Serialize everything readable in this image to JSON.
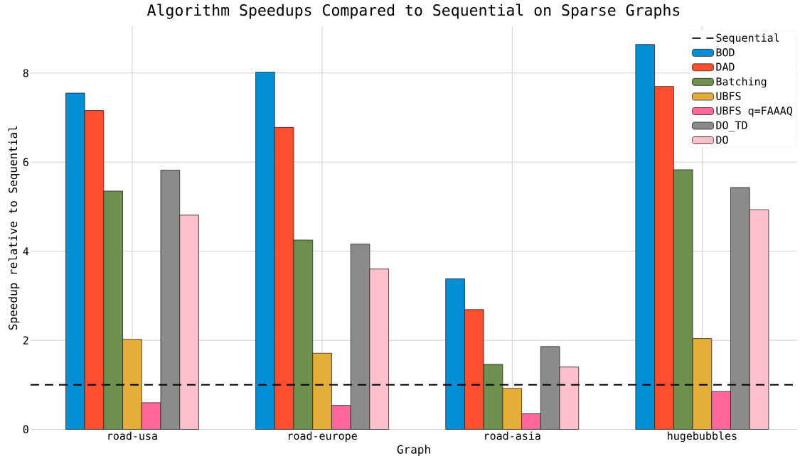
{
  "chart_data": {
    "type": "bar",
    "title": "Algorithm Speedups Compared to Sequential on Sparse Graphs",
    "xlabel": "Graph",
    "ylabel": "Speedup relative to Sequential",
    "categories": [
      "road-usa",
      "road-europe",
      "road-asia",
      "hugebubbles"
    ],
    "series": [
      {
        "name": "BOD",
        "color": "#008fd5",
        "values": [
          7.55,
          8.02,
          3.38,
          8.64
        ]
      },
      {
        "name": "DAD",
        "color": "#fc4f30",
        "values": [
          7.16,
          6.78,
          2.69,
          7.7
        ]
      },
      {
        "name": "Batching",
        "color": "#6d904f",
        "values": [
          5.35,
          4.25,
          1.46,
          5.83
        ]
      },
      {
        "name": "UBFS",
        "color": "#e5ae38",
        "values": [
          2.02,
          1.71,
          0.92,
          2.04
        ]
      },
      {
        "name": "UBFS q=FAAAQ",
        "color": "#ff6699",
        "values": [
          0.6,
          0.54,
          0.35,
          0.85
        ]
      },
      {
        "name": "DO_TD",
        "color": "#8b8b8b",
        "values": [
          5.82,
          4.16,
          1.86,
          5.43
        ]
      },
      {
        "name": "DO",
        "color": "#ffc0cb",
        "values": [
          4.81,
          3.6,
          1.4,
          4.93
        ]
      }
    ],
    "ylim": [
      0,
      9.05
    ],
    "yticks": [
      0,
      2,
      4,
      6,
      8
    ],
    "grid": true,
    "legend": "top right",
    "ref_lines": [
      {
        "axis": "y",
        "value": 1,
        "label": "Sequential",
        "color": "#000000",
        "line_style": "dashed"
      }
    ]
  }
}
